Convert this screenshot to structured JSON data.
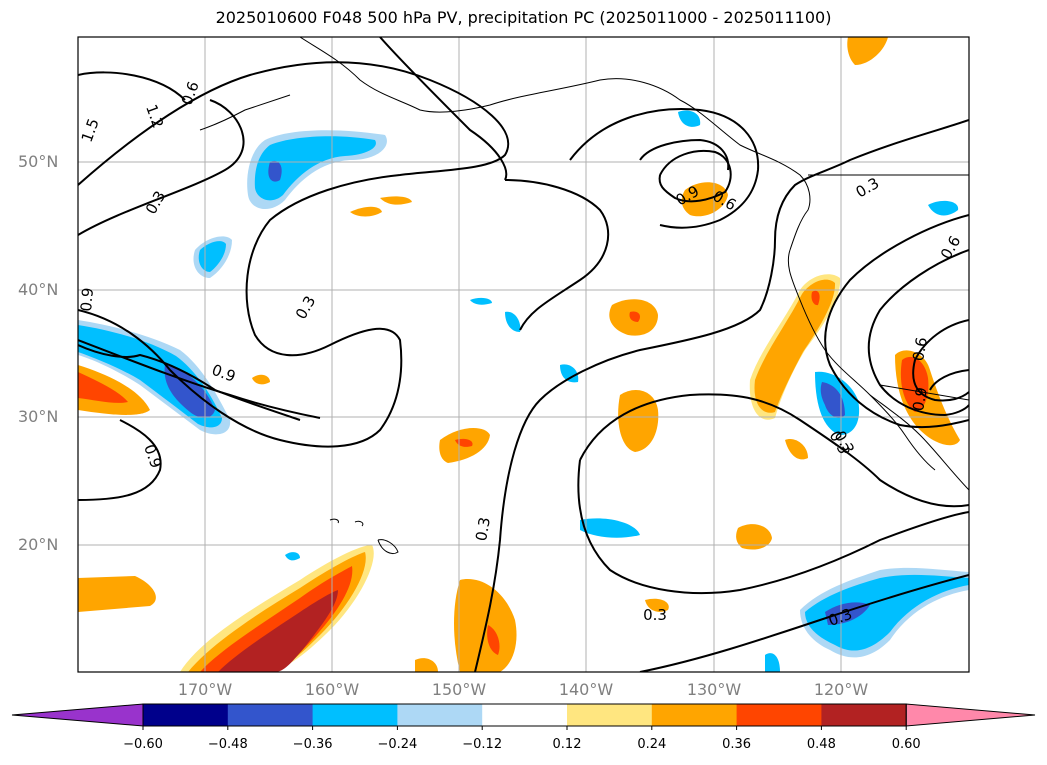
{
  "title": "2025010600 F048 500 hPa PV, precipitation PC (2025011000 - 2025011100)",
  "map": {
    "lon_range": [
      -180,
      -110
    ],
    "lat_range": [
      10,
      60
    ],
    "lat_labels": [
      "50°N",
      "40°N",
      "30°N",
      "20°N"
    ],
    "lon_labels": [
      "170°W",
      "160°W",
      "150°W",
      "140°W",
      "130°W",
      "120°W"
    ],
    "gridlines": true
  },
  "contours": {
    "variable": "500 hPa PV",
    "labels": [
      "1.5",
      "1.2",
      "0.9",
      "0.6",
      "0.3",
      "0.3",
      "0.9",
      "0.9",
      "0.3",
      "0.3",
      "0.3",
      "0.9",
      "0.6",
      "0.3",
      "0.6",
      "0.6",
      "0.9",
      "0.3",
      "0.3"
    ]
  },
  "colorbar": {
    "ticks": [
      "−0.60",
      "−0.48",
      "−0.36",
      "−0.24",
      "−0.12",
      "0.12",
      "0.24",
      "0.36",
      "0.48",
      "0.60"
    ],
    "colors": [
      "#9933cc",
      "#00008b",
      "#3355cc",
      "#00bfff",
      "#add8f5",
      "#ffffff",
      "#ffe680",
      "#ffa500",
      "#ff4500",
      "#b22222",
      "#ff88aa"
    ],
    "extend": "both"
  }
}
